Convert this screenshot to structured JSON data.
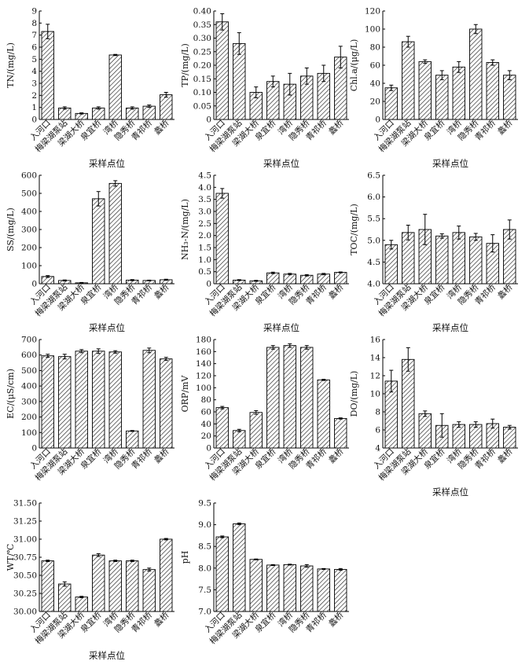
{
  "chart_data": [
    {
      "type": "bar",
      "categories": [
        "入河口",
        "梅梁湖泵站",
        "梁湖大桥",
        "泉宜桥",
        "湾桥",
        "隐秀桥",
        "青祁桥",
        "蠡桥"
      ],
      "values": [
        7.3,
        0.95,
        0.5,
        0.95,
        5.35,
        0.95,
        1.1,
        2.05
      ],
      "errors": [
        0.6,
        0.1,
        0.05,
        0.1,
        0.05,
        0.1,
        0.1,
        0.2
      ],
      "xlabel": "采样点位",
      "ylabel": "TN/(mg/L)",
      "ylim": [
        0,
        9
      ],
      "ticks": [
        "0",
        "1",
        "2",
        "3",
        "4",
        "5",
        "6",
        "7",
        "8",
        "9"
      ]
    },
    {
      "type": "bar",
      "categories": [
        "入河口",
        "梅梁湖泵站",
        "梁湖大桥",
        "泉宜桥",
        "湾桥",
        "隐秀桥",
        "青祁桥",
        "蠡桥"
      ],
      "values": [
        0.36,
        0.28,
        0.1,
        0.14,
        0.13,
        0.16,
        0.17,
        0.23
      ],
      "errors": [
        0.03,
        0.04,
        0.02,
        0.02,
        0.04,
        0.03,
        0.03,
        0.04
      ],
      "xlabel": "采样点位",
      "ylabel": "TP/(mg/L)",
      "ylim": [
        0,
        0.4
      ],
      "ticks": [
        "0",
        "0.05",
        "0.10",
        "0.15",
        "0.20",
        "0.25",
        "0.30",
        "0.35",
        "0.40"
      ]
    },
    {
      "type": "bar",
      "categories": [
        "入河口",
        "梅梁湖泵站",
        "梁湖大桥",
        "泉宜桥",
        "湾桥",
        "隐秀桥",
        "青祁桥",
        "蠡桥"
      ],
      "values": [
        35,
        86,
        64,
        49,
        58,
        100,
        63,
        49
      ],
      "errors": [
        3,
        6,
        2,
        5,
        6,
        5,
        3,
        5
      ],
      "xlabel": "采样点位",
      "ylabel": "Chl.a/(μg/L)",
      "ylim": [
        0,
        120
      ],
      "ticks": [
        "0",
        "20",
        "40",
        "60",
        "80",
        "100",
        "120"
      ]
    },
    {
      "type": "bar",
      "categories": [
        "入河口",
        "梅梁湖泵站",
        "梁湖大桥",
        "泉宜桥",
        "湾桥",
        "隐秀桥",
        "青祁桥",
        "蠡桥"
      ],
      "values": [
        40,
        18,
        5,
        470,
        555,
        20,
        18,
        22
      ],
      "errors": [
        5,
        3,
        2,
        40,
        15,
        3,
        2,
        3
      ],
      "xlabel": "采样点位",
      "ylabel": "SS/(mg/L)",
      "ylim": [
        0,
        600
      ],
      "ticks": [
        "0",
        "100",
        "200",
        "300",
        "400",
        "500",
        "600"
      ]
    },
    {
      "type": "bar",
      "categories": [
        "入河口",
        "梅梁湖泵站",
        "梁湖大桥",
        "泉宜桥",
        "湾桥",
        "隐秀桥",
        "青祁桥",
        "蠡桥"
      ],
      "values": [
        3.75,
        0.15,
        0.12,
        0.45,
        0.4,
        0.35,
        0.4,
        0.47
      ],
      "errors": [
        0.2,
        0.02,
        0.02,
        0.03,
        0.03,
        0.03,
        0.03,
        0.02
      ],
      "xlabel": "采样点位",
      "ylabel": "NH₃-N/(mg/L)",
      "ylim": [
        0,
        4.5
      ],
      "ticks": [
        "0",
        "0.5",
        "1.0",
        "1.5",
        "2.0",
        "2.5",
        "3.0",
        "3.5",
        "4.0",
        "4.5"
      ]
    },
    {
      "type": "bar",
      "categories": [
        "入河口",
        "梅梁湖泵站",
        "梁湖大桥",
        "泉宜桥",
        "湾桥",
        "隐秀桥",
        "青祁桥",
        "蠡桥"
      ],
      "values": [
        4.9,
        5.18,
        5.25,
        5.1,
        5.18,
        5.08,
        4.93,
        5.25
      ],
      "errors": [
        0.1,
        0.17,
        0.35,
        0.05,
        0.15,
        0.08,
        0.2,
        0.22
      ],
      "xlabel": "采样点位",
      "ylabel": "TOC/(mg/L)",
      "ylim": [
        4.0,
        6.5
      ],
      "ticks": [
        "4.0",
        "4.5",
        "5.0",
        "5.5",
        "6.0",
        "6.5"
      ]
    },
    {
      "type": "bar",
      "categories": [
        "入河口",
        "梅梁湖泵站",
        "梁湖大桥",
        "泉宜桥",
        "湾桥",
        "隐秀桥",
        "青祁桥",
        "蠡桥"
      ],
      "values": [
        595,
        590,
        625,
        625,
        620,
        110,
        630,
        575
      ],
      "errors": [
        10,
        15,
        10,
        15,
        8,
        3,
        15,
        10
      ],
      "xlabel": "",
      "ylabel": "EC/(μS/cm)",
      "ylim": [
        0,
        700
      ],
      "ticks": [
        "0",
        "100",
        "200",
        "300",
        "400",
        "500",
        "600",
        "700"
      ]
    },
    {
      "type": "bar",
      "categories": [
        "入河口",
        "梅梁湖泵站",
        "梁湖大桥",
        "泉宜桥",
        "湾桥",
        "隐秀桥",
        "青祁桥",
        "蠡桥"
      ],
      "values": [
        67,
        29,
        59,
        167,
        170,
        167,
        113,
        49
      ],
      "errors": [
        2,
        2,
        3,
        3,
        3,
        3,
        1,
        1
      ],
      "xlabel": "",
      "ylabel": "ORP/mV",
      "ylim": [
        0,
        180
      ],
      "ticks": [
        "0",
        "20",
        "40",
        "60",
        "80",
        "100",
        "120",
        "140",
        "160",
        "180"
      ]
    },
    {
      "type": "bar",
      "categories": [
        "入河口",
        "梅梁湖泵站",
        "梁湖大桥",
        "泉宜桥",
        "湾桥",
        "隐秀桥",
        "青祁桥",
        "蠡桥"
      ],
      "values": [
        11.4,
        13.8,
        7.8,
        6.5,
        6.6,
        6.6,
        6.7,
        6.3
      ],
      "errors": [
        1.2,
        1.3,
        0.3,
        1.3,
        0.3,
        0.3,
        0.5,
        0.2
      ],
      "xlabel": "采样点位",
      "ylabel": "DO/(mg/L)",
      "ylim": [
        4,
        16
      ],
      "ticks": [
        "4",
        "6",
        "8",
        "10",
        "12",
        "14",
        "16"
      ]
    },
    {
      "type": "bar",
      "categories": [
        "入河口",
        "梅梁湖泵站",
        "梁湖大桥",
        "泉宜桥",
        "湾桥",
        "隐秀桥",
        "青祁桥",
        "蠡桥"
      ],
      "values": [
        30.7,
        30.38,
        30.2,
        30.78,
        30.7,
        30.7,
        30.58,
        31.0
      ],
      "errors": [
        0.01,
        0.03,
        0.01,
        0.02,
        0.01,
        0.01,
        0.02,
        0.01
      ],
      "xlabel": "采样点位",
      "ylabel": "WT/℃",
      "ylim": [
        30.0,
        31.5
      ],
      "ticks": [
        "30.00",
        "30.25",
        "30.50",
        "30.75",
        "31.00",
        "31.25",
        "31.50"
      ]
    },
    {
      "type": "bar",
      "categories": [
        "入河口",
        "梅梁湖泵站",
        "梁湖大桥",
        "泉宜桥",
        "湾桥",
        "隐秀桥",
        "青祁桥",
        "蠡桥"
      ],
      "values": [
        8.72,
        9.02,
        8.2,
        8.07,
        8.08,
        8.05,
        7.98,
        7.97
      ],
      "errors": [
        0.02,
        0.02,
        0.01,
        0.01,
        0.01,
        0.03,
        0.01,
        0.02
      ],
      "xlabel": "",
      "ylabel": "pH",
      "ylim": [
        7.0,
        9.5
      ],
      "ticks": [
        "7.0",
        "7.5",
        "8.0",
        "8.5",
        "9.0",
        "9.5"
      ]
    }
  ]
}
